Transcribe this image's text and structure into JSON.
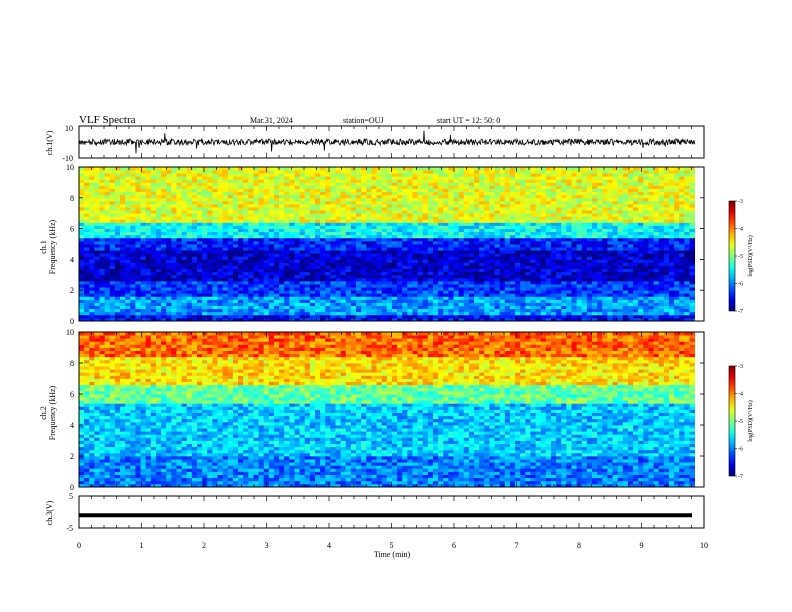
{
  "header": {
    "title": "VLF Spectra",
    "date": "Mar.31, 2024",
    "station": "station=OUJ",
    "start": "start  UT =   12: 50: 0"
  },
  "chart_data": [
    {
      "type": "line",
      "panel": "ch1-waveform",
      "ylabel": "ch.1(V)",
      "ylim": [
        -10,
        10
      ],
      "yticks": [
        "10",
        "-10"
      ],
      "xlim": [
        0,
        10
      ],
      "baseline": 0,
      "line_color": "#000000"
    },
    {
      "type": "heatmap",
      "panel": "ch1-spectrogram",
      "ylabel_top": "ch.1",
      "ylabel": "Frequency (kHz)",
      "ylim": [
        0,
        10
      ],
      "yticks": [
        "0",
        "2",
        "4",
        "6",
        "8",
        "10"
      ],
      "xlim": [
        0,
        10
      ],
      "data_end_x": 9.85,
      "colorbar": {
        "label": "log(PSD)(V²/Hz)",
        "min": -7,
        "max": -3,
        "ticks": [
          "-3",
          "-4",
          "-5",
          "-6",
          "-7"
        ]
      },
      "bands": [
        {
          "f": [
            0,
            0.5
          ],
          "v": -6.5
        },
        {
          "f": [
            0.5,
            1.6
          ],
          "v": -5.9
        },
        {
          "f": [
            1.6,
            2.6
          ],
          "v": -6.3
        },
        {
          "f": [
            2.6,
            4.6
          ],
          "v": -6.7
        },
        {
          "f": [
            4.6,
            5.4
          ],
          "v": -6.4
        },
        {
          "f": [
            5.4,
            6.4
          ],
          "v": -5.5
        },
        {
          "f": [
            6.4,
            10
          ],
          "v": -4.6
        }
      ]
    },
    {
      "type": "heatmap",
      "panel": "ch2-spectrogram",
      "ylabel_top": "ch.2",
      "ylabel": "Frequency (kHz)",
      "ylim": [
        0,
        10
      ],
      "yticks": [
        "0",
        "2",
        "4",
        "6",
        "8",
        "10"
      ],
      "xlim": [
        0,
        10
      ],
      "data_end_x": 9.85,
      "colorbar": {
        "label": "log(PSD)(V²/Hz)",
        "min": -7,
        "max": -3,
        "ticks": [
          "-3",
          "-4",
          "-5",
          "-6",
          "-7"
        ]
      },
      "bands": [
        {
          "f": [
            0,
            2
          ],
          "v": -6.0
        },
        {
          "f": [
            2,
            5.5
          ],
          "v": -5.7
        },
        {
          "f": [
            5.5,
            6.6
          ],
          "v": -5.1
        },
        {
          "f": [
            6.6,
            8.5
          ],
          "v": -4.4
        },
        {
          "f": [
            8.5,
            10
          ],
          "v": -3.9
        }
      ]
    },
    {
      "type": "line",
      "panel": "ch3-waveform",
      "ylabel": "ch.3(V)",
      "ylim": [
        -5,
        5
      ],
      "yticks": [
        "5",
        "-5"
      ],
      "xlim": [
        0,
        10
      ],
      "xlabel": "Time (min)",
      "xticks": [
        "0",
        "1",
        "2",
        "3",
        "4",
        "5",
        "6",
        "7",
        "8",
        "9",
        "10"
      ],
      "value": -1,
      "line_color": "#000000"
    }
  ]
}
